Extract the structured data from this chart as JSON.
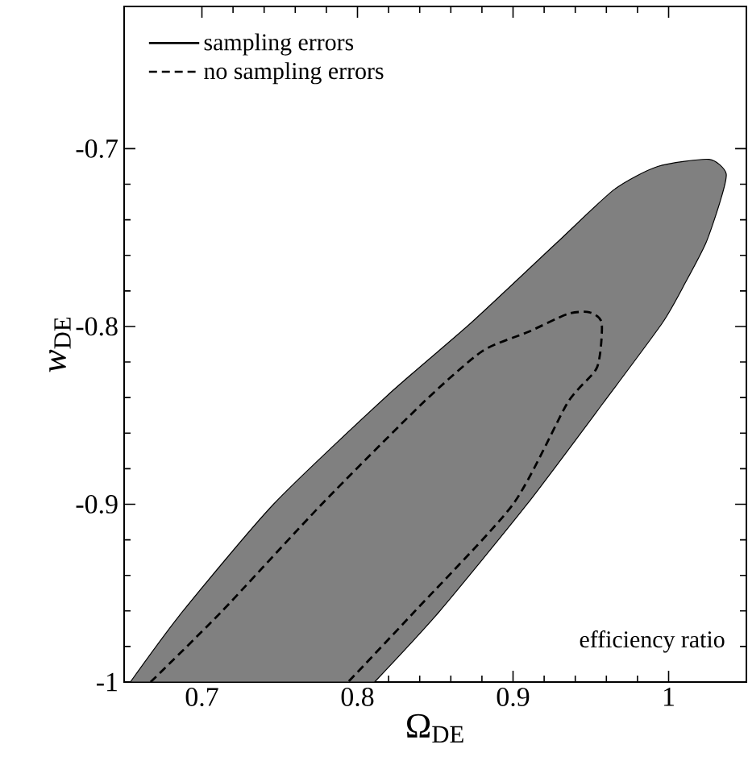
{
  "chart_data": {
    "type": "line",
    "xlabel": "Ω$_{DE}$",
    "ylabel": "*w*$_{DE}$",
    "xlim": [
      0.65,
      1.05
    ],
    "ylim": [
      -1,
      -0.62
    ],
    "xticks": [
      0.7,
      0.8,
      0.9,
      1
    ],
    "yticks": [
      -1,
      -0.9,
      -0.8,
      -0.7
    ],
    "legend": "top left",
    "grid": false,
    "series": [
      {
        "name": "sampling errors",
        "type": "area",
        "color": "#808080",
        "line_style": "solid",
        "x": [
          0.654,
          0.687,
          0.746,
          0.819,
          0.873,
          0.928,
          0.965,
          0.993,
          1.026,
          1.037,
          1.033,
          1.024,
          1.011,
          0.996,
          0.958,
          0.909,
          0.852,
          0.811
        ],
        "values": [
          -1,
          -0.961,
          -0.9,
          -0.839,
          -0.798,
          -0.753,
          -0.723,
          -0.71,
          -0.706,
          -0.714,
          -0.73,
          -0.753,
          -0.775,
          -0.798,
          -0.843,
          -0.9,
          -0.961,
          -1
        ]
      },
      {
        "name": "no sampling errors",
        "color": "#000000",
        "line_style": "dashed",
        "x": [
          0.667,
          0.712,
          0.777,
          0.842,
          0.88,
          0.91,
          0.935,
          0.949,
          0.957,
          0.954,
          0.935,
          0.9,
          0.836,
          0.794
        ],
        "values": [
          -1,
          -0.961,
          -0.9,
          -0.843,
          -0.814,
          -0.803,
          -0.793,
          -0.792,
          -0.798,
          -0.823,
          -0.843,
          -0.9,
          -0.961,
          -1
        ]
      }
    ],
    "annotations": [
      "efficiency ratio"
    ]
  }
}
